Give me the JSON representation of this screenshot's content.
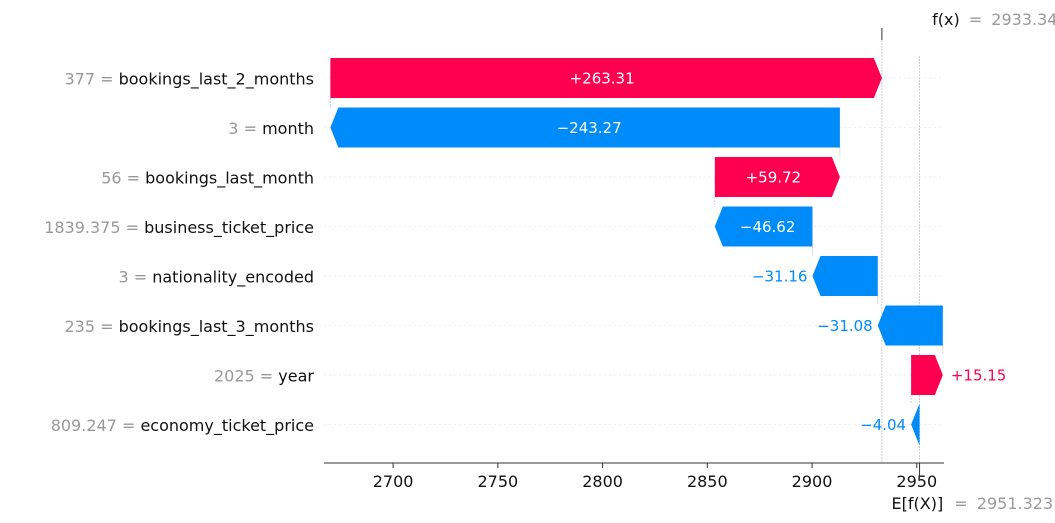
{
  "chart_data": {
    "type": "waterfall",
    "base_value": 2951.323,
    "output_value": 2933.344,
    "base_label": "E[f(X)]",
    "output_label": "f(x)",
    "base_value_text": "2951.323",
    "output_value_text": "2933.344",
    "xlim": [
      2667,
      2963
    ],
    "xticks": [
      2700,
      2750,
      2800,
      2850,
      2900,
      2950
    ],
    "colors": {
      "positive": "#ff0051",
      "negative": "#008bfb"
    },
    "features": [
      {
        "value_text": "377",
        "name": "bookings_last_2_months",
        "shap": 263.31,
        "label": "+263.31"
      },
      {
        "value_text": "3",
        "name": "month",
        "shap": -243.27,
        "label": "−243.27"
      },
      {
        "value_text": "56",
        "name": "bookings_last_month",
        "shap": 59.72,
        "label": "+59.72"
      },
      {
        "value_text": "1839.375",
        "name": "business_ticket_price",
        "shap": -46.62,
        "label": "−46.62"
      },
      {
        "value_text": "3",
        "name": "nationality_encoded",
        "shap": -31.16,
        "label": "−31.16"
      },
      {
        "value_text": "235",
        "name": "bookings_last_3_months",
        "shap": -31.08,
        "label": "−31.08"
      },
      {
        "value_text": "2025",
        "name": "year",
        "shap": 15.15,
        "label": "+15.15"
      },
      {
        "value_text": "809.247",
        "name": "economy_ticket_price",
        "shap": -4.04,
        "label": "−4.04"
      }
    ]
  }
}
